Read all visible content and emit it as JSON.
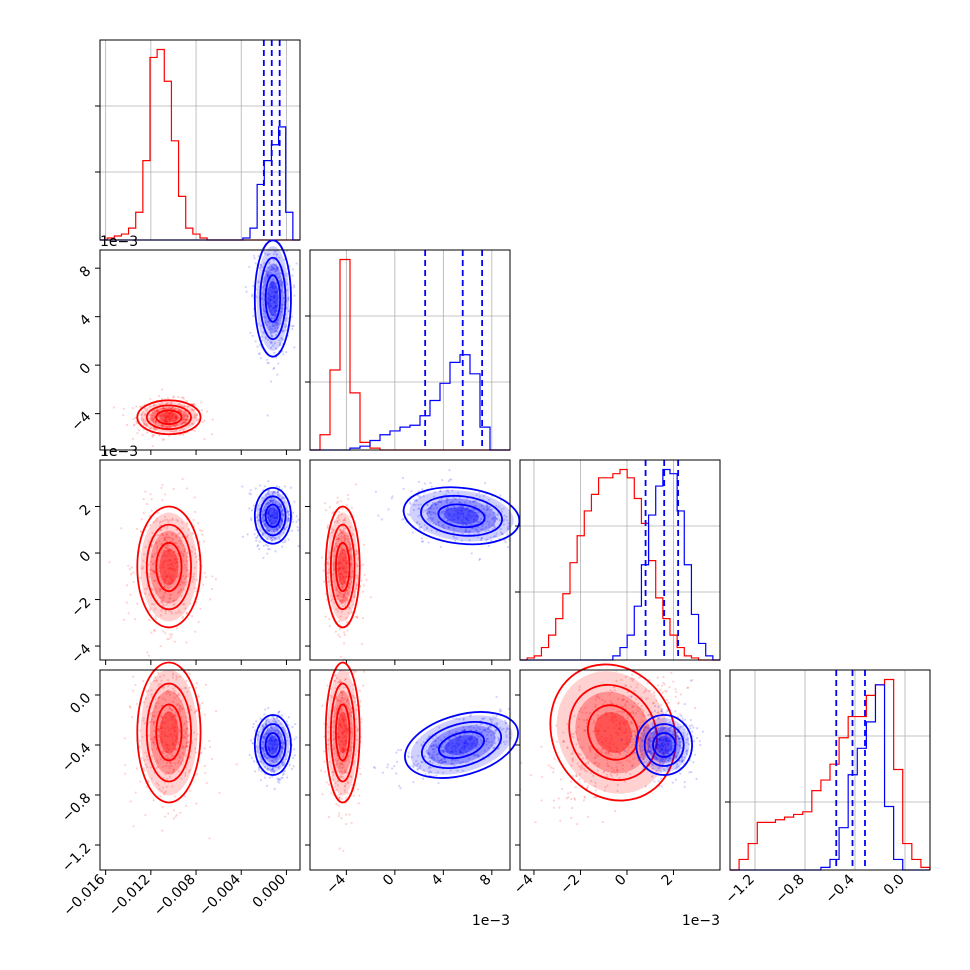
{
  "chart_data": {
    "type": "corner",
    "variables": [
      {
        "range": [
          -0.0165,
          0.0012
        ],
        "ticks": [
          "−0.016",
          "−0.012",
          "−0.008",
          "−0.004",
          "0.000"
        ],
        "tick_values": [
          -0.016,
          -0.012,
          -0.008,
          -0.004,
          0.0
        ],
        "offset": ""
      },
      {
        "range": [
          -7.0,
          9.5
        ],
        "ticks": [
          "−4",
          "0",
          "4",
          "8"
        ],
        "tick_values": [
          -4,
          0,
          4,
          8
        ],
        "offset": "1e−3"
      },
      {
        "range": [
          -4.6,
          4.0
        ],
        "ticks": [
          "−4",
          "−2",
          "0",
          "2"
        ],
        "tick_values": [
          -4,
          -2,
          0,
          2
        ],
        "offset": "1e−3"
      },
      {
        "range": [
          -1.4,
          0.2
        ],
        "ticks": [
          "−1.2",
          "−0.8",
          "−0.4",
          "0.0"
        ],
        "tick_values": [
          -1.2,
          -0.8,
          -0.4,
          0.0
        ],
        "offset": ""
      }
    ],
    "row_ticks": [
      [],
      {
        "labels": [
          "8",
          "4",
          "0",
          "−4"
        ],
        "values": [
          8,
          4,
          0,
          -4
        ]
      },
      {
        "labels": [
          "2",
          "0",
          "−2",
          "−4"
        ],
        "values": [
          2,
          0,
          -2,
          -4
        ]
      },
      {
        "labels": [
          "0.0",
          "−0.4",
          "−0.8",
          "−1.2"
        ],
        "values": [
          0.0,
          -0.4,
          -0.8,
          -1.2
        ]
      }
    ],
    "series": [
      {
        "color": "#ff0000",
        "means": [
          -0.0104,
          -4.3,
          -0.6,
          -0.3
        ],
        "sds": [
          0.0014,
          0.7,
          1.3,
          0.28
        ],
        "quantiles": []
      },
      {
        "color": "#0000ff",
        "means": [
          -0.0012,
          5.5,
          1.6,
          -0.4
        ],
        "sds": [
          0.0008,
          2.4,
          0.6,
          0.12
        ],
        "quantiles": [
          [
            -0.002,
            -0.0013,
            -0.0006
          ],
          [
            2.5,
            5.6,
            7.2
          ],
          [
            0.8,
            1.6,
            2.2
          ],
          [
            -0.55,
            -0.42,
            -0.32
          ]
        ]
      }
    ],
    "histograms": [
      {
        "bins": [
          -0.0165,
          0.0012
        ],
        "red": [
          0,
          1,
          2,
          3,
          6,
          14,
          40,
          92,
          96,
          80,
          50,
          22,
          6,
          3,
          1,
          0,
          0,
          0,
          0,
          0,
          0,
          0,
          0,
          0,
          0,
          0,
          0,
          0
        ],
        "blue": [
          0,
          0,
          0,
          0,
          0,
          0,
          0,
          0,
          0,
          0,
          0,
          0,
          0,
          0,
          0,
          0,
          0,
          0,
          0,
          0,
          1,
          6,
          28,
          40,
          48,
          57,
          14,
          0
        ]
      },
      {
        "bins": [
          -7.0,
          9.5
        ],
        "red": [
          0,
          8,
          42,
          100,
          30,
          4,
          1,
          0,
          0,
          0,
          0,
          0,
          0,
          0,
          0,
          0,
          0,
          0,
          0,
          0
        ],
        "blue": [
          0,
          0,
          0,
          0,
          1,
          2,
          5,
          8,
          10,
          12,
          13,
          18,
          26,
          35,
          46,
          50,
          40,
          12,
          0,
          0
        ]
      },
      {
        "bins": [
          -4.6,
          4.0
        ],
        "red": [
          0,
          1,
          2,
          6,
          12,
          20,
          32,
          47,
          60,
          72,
          80,
          88,
          88,
          90,
          92,
          88,
          78,
          66,
          48,
          30,
          20,
          12,
          6,
          2,
          1,
          0,
          0,
          0
        ],
        "blue": [
          0,
          0,
          0,
          0,
          0,
          0,
          0,
          0,
          0,
          0,
          0,
          0,
          0,
          2,
          6,
          12,
          26,
          46,
          70,
          84,
          92,
          90,
          72,
          46,
          22,
          8,
          2,
          0
        ]
      },
      {
        "bins": [
          -1.4,
          0.2
        ],
        "red": [
          0,
          4,
          10,
          18,
          18,
          19,
          20,
          21,
          22,
          30,
          34,
          40,
          50,
          58,
          58,
          66,
          70,
          72,
          38,
          10,
          4,
          1
        ],
        "blue": [
          0,
          0,
          0,
          0,
          0,
          0,
          0,
          0,
          0,
          0,
          1,
          4,
          16,
          36,
          46,
          56,
          70,
          24,
          4,
          0,
          0,
          0
        ]
      }
    ]
  }
}
